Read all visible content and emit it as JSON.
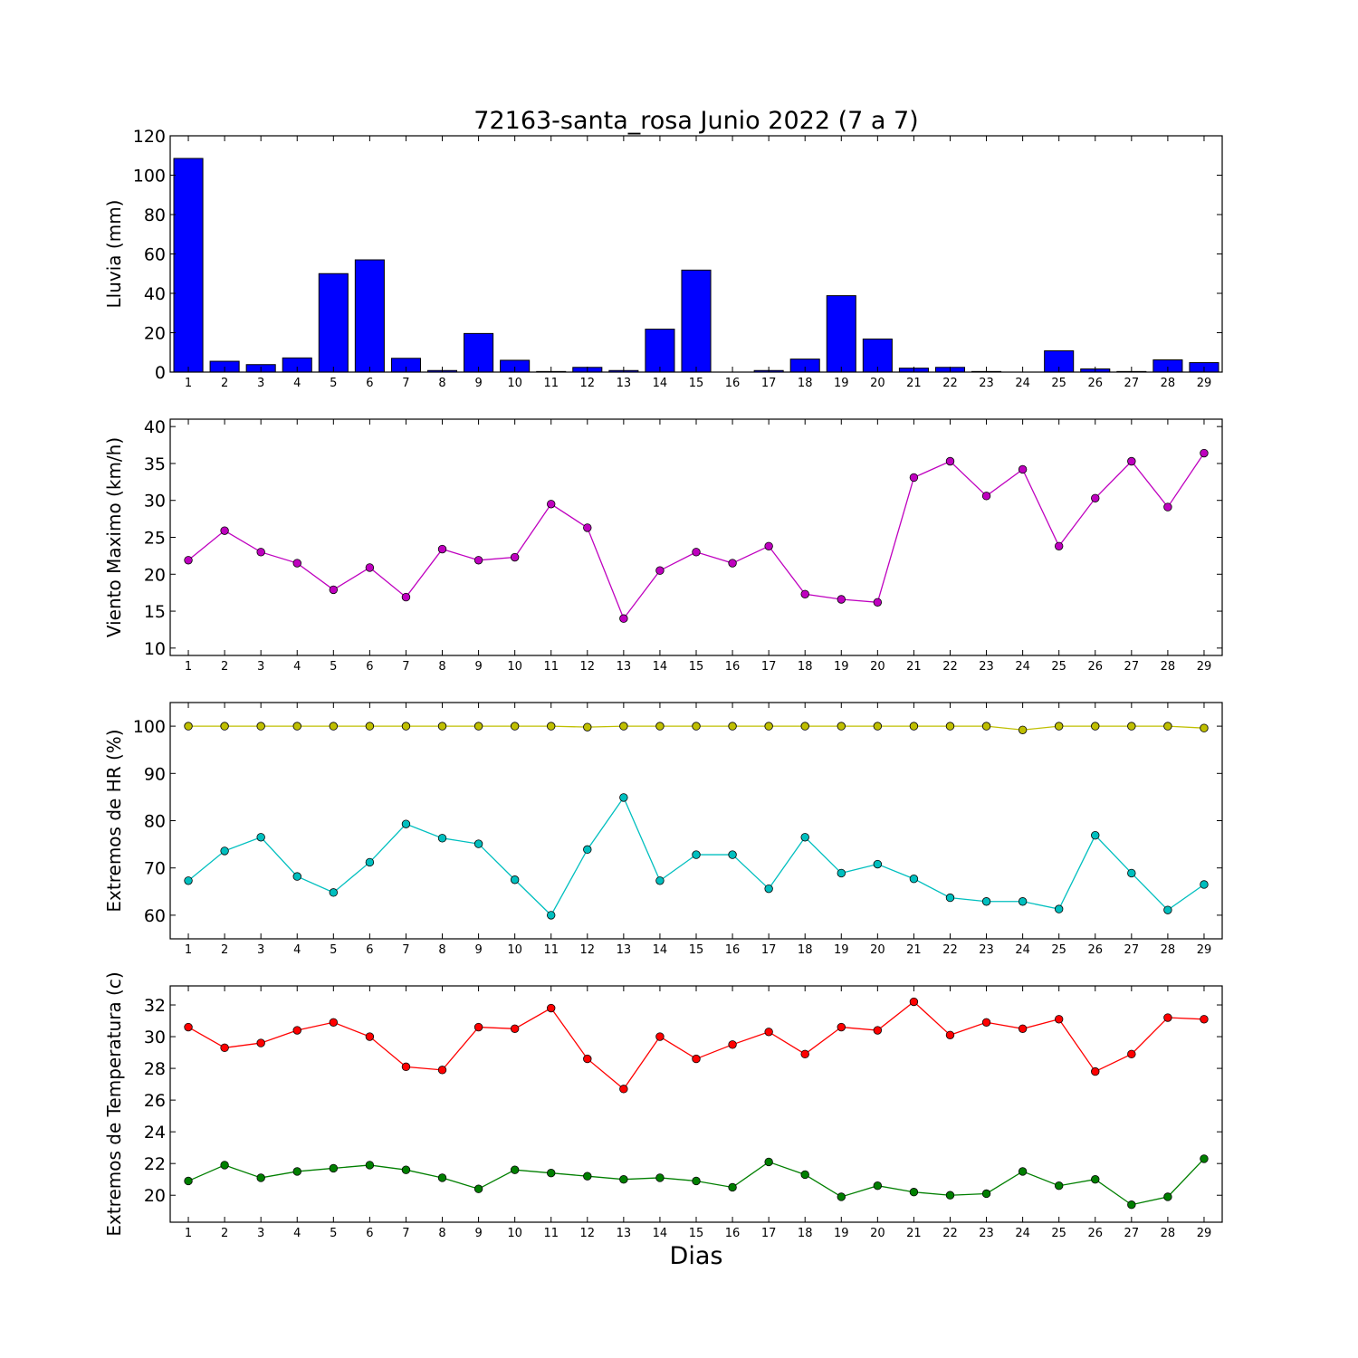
{
  "title": "72163-santa_rosa Junio 2022  (7 a 7)",
  "xlabel": "Dias",
  "chart_data": [
    {
      "type": "bar",
      "ylabel": "Lluvia (mm)",
      "ylim": [
        0,
        120
      ],
      "yticks": [
        0,
        20,
        40,
        60,
        80,
        100,
        120
      ],
      "x": [
        1,
        2,
        3,
        4,
        5,
        6,
        7,
        8,
        9,
        10,
        11,
        12,
        13,
        14,
        15,
        16,
        17,
        18,
        19,
        20,
        21,
        22,
        23,
        24,
        25,
        26,
        27,
        28,
        29
      ],
      "series": [
        {
          "color": "#0000ff",
          "values": [
            108.5,
            5.5,
            3.8,
            7.2,
            50.0,
            57.0,
            7.0,
            0.8,
            19.6,
            6.0,
            0.3,
            2.4,
            0.8,
            21.8,
            51.8,
            0,
            0.8,
            6.6,
            38.8,
            16.8,
            2.0,
            2.4,
            0.3,
            0,
            10.8,
            1.6,
            0.3,
            6.2,
            4.8
          ]
        }
      ]
    },
    {
      "type": "line",
      "ylabel": "Viento Maximo (km/h)",
      "ylim": [
        9,
        41
      ],
      "yticks": [
        10,
        15,
        20,
        25,
        30,
        35,
        40
      ],
      "x": [
        1,
        2,
        3,
        4,
        5,
        6,
        7,
        8,
        9,
        10,
        11,
        12,
        13,
        14,
        15,
        16,
        17,
        18,
        19,
        20,
        21,
        22,
        23,
        24,
        25,
        26,
        27,
        28,
        29
      ],
      "series": [
        {
          "color": "#bf00bf",
          "values": [
            21.9,
            25.9,
            23.0,
            21.5,
            17.9,
            20.9,
            16.9,
            23.4,
            21.9,
            22.3,
            29.5,
            26.3,
            14.0,
            20.5,
            23.0,
            21.5,
            23.8,
            17.3,
            16.6,
            16.2,
            33.1,
            35.3,
            30.6,
            34.2,
            23.8,
            30.3,
            35.3,
            29.1,
            36.4
          ]
        }
      ]
    },
    {
      "type": "line",
      "ylabel": "Extremos de HR (%)",
      "ylim": [
        55,
        105
      ],
      "yticks": [
        60,
        70,
        80,
        90,
        100
      ],
      "x": [
        1,
        2,
        3,
        4,
        5,
        6,
        7,
        8,
        9,
        10,
        11,
        12,
        13,
        14,
        15,
        16,
        17,
        18,
        19,
        20,
        21,
        22,
        23,
        24,
        25,
        26,
        27,
        28,
        29
      ],
      "series": [
        {
          "color": "#bfbf00",
          "values": [
            100,
            100,
            100,
            100,
            100,
            100,
            100,
            100,
            100,
            100,
            100,
            99.8,
            100,
            100,
            100,
            100,
            100,
            100,
            100,
            100,
            100,
            100,
            100,
            99.2,
            100,
            100,
            100,
            100,
            99.6
          ]
        },
        {
          "color": "#00bfbf",
          "values": [
            67.3,
            73.6,
            76.5,
            68.2,
            64.8,
            71.2,
            79.3,
            76.3,
            75.1,
            67.5,
            60.0,
            73.9,
            84.9,
            67.3,
            72.8,
            72.8,
            65.6,
            76.5,
            68.9,
            70.8,
            67.7,
            63.7,
            62.9,
            62.9,
            61.3,
            76.9,
            68.9,
            61.1,
            66.5
          ]
        }
      ]
    },
    {
      "type": "line",
      "ylabel": "Extremos de Temperatura (c)",
      "ylim": [
        18.3,
        33.2
      ],
      "yticks": [
        20,
        22,
        24,
        26,
        28,
        30,
        32
      ],
      "x": [
        1,
        2,
        3,
        4,
        5,
        6,
        7,
        8,
        9,
        10,
        11,
        12,
        13,
        14,
        15,
        16,
        17,
        18,
        19,
        20,
        21,
        22,
        23,
        24,
        25,
        26,
        27,
        28,
        29
      ],
      "series": [
        {
          "color": "#ff0000",
          "values": [
            30.6,
            29.3,
            29.6,
            30.4,
            30.9,
            30.0,
            28.1,
            27.9,
            30.6,
            30.5,
            31.8,
            28.6,
            26.7,
            30.0,
            28.6,
            29.5,
            30.3,
            28.9,
            30.6,
            30.4,
            32.2,
            30.1,
            30.9,
            30.5,
            31.1,
            27.8,
            28.9,
            31.2,
            31.1
          ]
        },
        {
          "color": "#007f00",
          "values": [
            20.9,
            21.9,
            21.1,
            21.5,
            21.7,
            21.9,
            21.6,
            21.1,
            20.4,
            21.6,
            21.4,
            21.2,
            21.0,
            21.1,
            20.9,
            20.5,
            22.1,
            21.3,
            19.9,
            20.6,
            20.2,
            20.0,
            20.1,
            21.5,
            20.6,
            21.0,
            19.4,
            19.9,
            22.3
          ]
        }
      ]
    }
  ]
}
